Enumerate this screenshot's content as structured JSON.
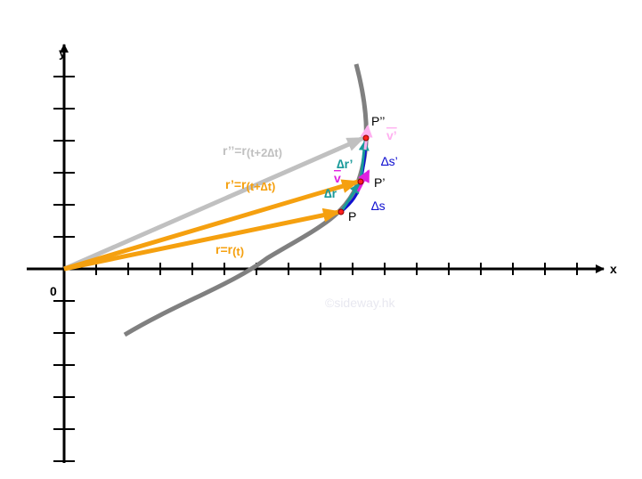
{
  "axes": {
    "x_label": "x",
    "y_label": "y",
    "origin_label": "0"
  },
  "points": {
    "p": "P",
    "p_prime": "P’",
    "p_double_prime": "P’’"
  },
  "vectors": {
    "r": {
      "main": "r=r",
      "sub": "(t)"
    },
    "r_prime": {
      "main": "r’=r",
      "sub": "(t+∆t)"
    },
    "r_double_prime": {
      "main": "r’’=r",
      "sub": "(t+2∆t)"
    },
    "delta_r": "∆r",
    "delta_r_prime": "∆r’",
    "v": "v",
    "v_prime": "v’",
    "delta_s": "∆s",
    "delta_s_prime": "∆s’"
  },
  "watermark": "©sideway.hk"
}
